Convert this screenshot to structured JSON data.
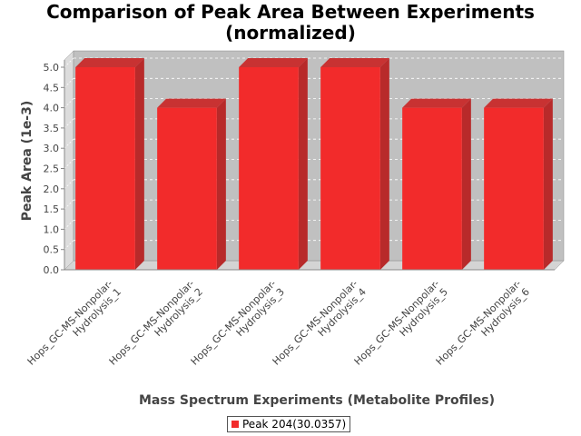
{
  "colors": {
    "bar_front": "#f22b2b",
    "bar_top": "#c83232",
    "bar_side": "#b82a2a",
    "plot_back": "#c0c0c0",
    "plot_wall": "#dcdcdc",
    "plot_floor": "#d4d4d4",
    "gridline": "#ffffff",
    "axis_text": "#444444"
  },
  "chart_data": {
    "type": "bar",
    "title_lines": [
      "Comparison of Peak Area Between Experiments",
      "(normalized)"
    ],
    "xlabel": "Mass Spectrum Experiments (Metabolite Profiles)",
    "ylabel": "Peak Area (1e-3)",
    "categories": [
      [
        "Hops_GC-MS-Nonpolar-",
        "Hydrolysis_1"
      ],
      [
        "Hops_GC-MS-Nonpolar-",
        "Hydrolysis_2"
      ],
      [
        "Hops_GC-MS-Nonpolar-",
        "Hydrolysis_3"
      ],
      [
        "Hops_GC-MS-Nonpolar-",
        "Hydrolysis_4"
      ],
      [
        "Hops_GC-MS-Nonpolar-",
        "Hydrolysis_5"
      ],
      [
        "Hops_GC-MS-Nonpolar-",
        "Hydrolysis_6"
      ]
    ],
    "series": [
      {
        "name": "Peak 204(30.0357)",
        "values": [
          5.0,
          4.0,
          5.0,
          5.0,
          4.0,
          4.0
        ]
      }
    ],
    "yticks": [
      "0.0",
      "0.5",
      "1.0",
      "1.5",
      "2.0",
      "2.5",
      "3.0",
      "3.5",
      "4.0",
      "4.5",
      "5.0"
    ],
    "ylim": [
      0,
      5.0
    ],
    "grid": true,
    "style": "3d",
    "legend_position": "bottom"
  }
}
